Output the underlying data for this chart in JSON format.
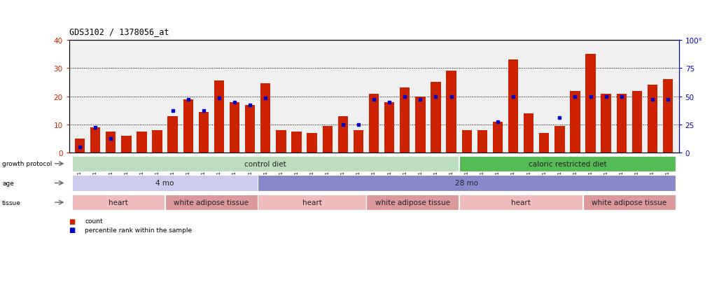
{
  "title": "GDS3102 / 1378056_at",
  "samples": [
    "GSM154903",
    "GSM154904",
    "GSM154905",
    "GSM154906",
    "GSM154907",
    "GSM154908",
    "GSM154920",
    "GSM154921",
    "GSM154922",
    "GSM154924",
    "GSM154925",
    "GSM154932",
    "GSM154933",
    "GSM154896",
    "GSM154897",
    "GSM154898",
    "GSM154899",
    "GSM154900",
    "GSM154901",
    "GSM154902",
    "GSM154918",
    "GSM154919",
    "GSM154929",
    "GSM154930",
    "GSM154931",
    "GSM154909",
    "GSM154910",
    "GSM154911",
    "GSM154912",
    "GSM154913",
    "GSM154914",
    "GSM154915",
    "GSM154916",
    "GSM154917",
    "GSM154923",
    "GSM154926",
    "GSM154927",
    "GSM154928",
    "GSM154934"
  ],
  "counts": [
    5.0,
    9.0,
    7.5,
    6.0,
    7.5,
    8.0,
    13.0,
    19.0,
    14.5,
    25.5,
    18.0,
    17.0,
    24.5,
    8.0,
    7.5,
    7.0,
    9.5,
    13.0,
    8.0,
    21.0,
    18.0,
    23.0,
    20.0,
    25.0,
    29.0,
    8.0,
    8.0,
    11.0,
    33.0,
    14.0,
    7.0,
    9.5,
    22.0,
    35.0,
    21.0,
    21.0,
    22.0,
    24.0,
    26.0
  ],
  "percentiles_left_scale": [
    2.0,
    9.0,
    5.0,
    null,
    null,
    null,
    15.0,
    19.0,
    15.0,
    19.5,
    18.0,
    17.0,
    19.5,
    null,
    null,
    null,
    null,
    10.0,
    10.0,
    19.0,
    18.0,
    20.0,
    19.0,
    20.0,
    20.0,
    null,
    null,
    11.0,
    20.0,
    null,
    null,
    12.5,
    20.0,
    20.0,
    20.0,
    20.0,
    null,
    19.0,
    19.0
  ],
  "ylim_left": [
    0,
    40
  ],
  "ylim_right": [
    0,
    100
  ],
  "yticks_left": [
    0,
    10,
    20,
    30,
    40
  ],
  "yticks_right": [
    0,
    25,
    50,
    75,
    100
  ],
  "bar_color": "#cc2200",
  "dot_color": "#0000cc",
  "bg_color": "#ffffff",
  "ax_bg_color": "#f0f0f0",
  "growth_protocol": [
    {
      "label": "control diet",
      "start": 0,
      "end": 25,
      "color": "#bbddbb"
    },
    {
      "label": "caloric restricted diet",
      "start": 25,
      "end": 39,
      "color": "#55bb55"
    }
  ],
  "age": [
    {
      "label": "4 mo",
      "start": 0,
      "end": 12,
      "color": "#ccccee"
    },
    {
      "label": "28 mo",
      "start": 12,
      "end": 39,
      "color": "#8888cc"
    }
  ],
  "tissue": [
    {
      "label": "heart",
      "start": 0,
      "end": 6,
      "color": "#f0bbbb"
    },
    {
      "label": "white adipose tissue",
      "start": 6,
      "end": 12,
      "color": "#dd9999"
    },
    {
      "label": "heart",
      "start": 12,
      "end": 19,
      "color": "#f0bbbb"
    },
    {
      "label": "white adipose tissue",
      "start": 19,
      "end": 25,
      "color": "#dd9999"
    },
    {
      "label": "heart",
      "start": 25,
      "end": 33,
      "color": "#f0bbbb"
    },
    {
      "label": "white adipose tissue",
      "start": 33,
      "end": 39,
      "color": "#dd9999"
    }
  ],
  "row_labels": [
    "growth protocol",
    "age",
    "tissue"
  ]
}
